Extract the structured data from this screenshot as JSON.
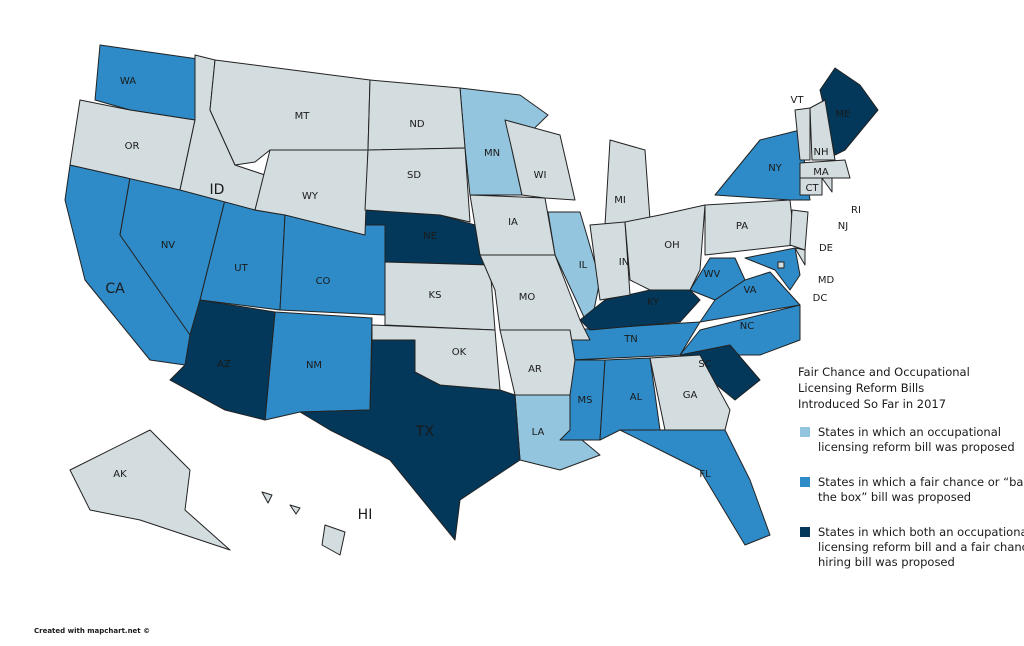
{
  "map": {
    "legend_title": [
      "Fair Chance and Occupational",
      "Licensing Reform Bills",
      "Introduced So Far in 2017"
    ],
    "legend": [
      {
        "label": [
          "States in which an occupational",
          "licensing reform bill was proposed"
        ],
        "color": "#94c5de",
        "states": [
          "MN",
          "IL",
          "LA"
        ]
      },
      {
        "label": [
          "States in which a fair chance or “ban",
          "the box” bill was proposed"
        ],
        "color": "#2e8bc7",
        "states": [
          "WA",
          "CA",
          "NV",
          "UT",
          "CO",
          "NM",
          "NY",
          "WV",
          "VA",
          "NC",
          "TN",
          "MS",
          "AL",
          "FL",
          "MD"
        ]
      },
      {
        "label": [
          "States in which both an occupational",
          "licensing reform bill and a fair chance",
          "hiring bill was proposed"
        ],
        "color": "#03385a",
        "states": [
          "NE",
          "AZ",
          "TX",
          "KY",
          "SC",
          "ME"
        ]
      }
    ],
    "other_states": [
      "OR",
      "ID",
      "MT",
      "WY",
      "ND",
      "SD",
      "KS",
      "OK",
      "IA",
      "MO",
      "AR",
      "WI",
      "MI",
      "IN",
      "OH",
      "GA",
      "PA",
      "NJ",
      "DE",
      "DC",
      "VT",
      "NH",
      "MA",
      "CT",
      "RI",
      "AK",
      "HI"
    ],
    "other_color": "#d3dcdf",
    "footer": "Created with mapchart.net ©"
  }
}
